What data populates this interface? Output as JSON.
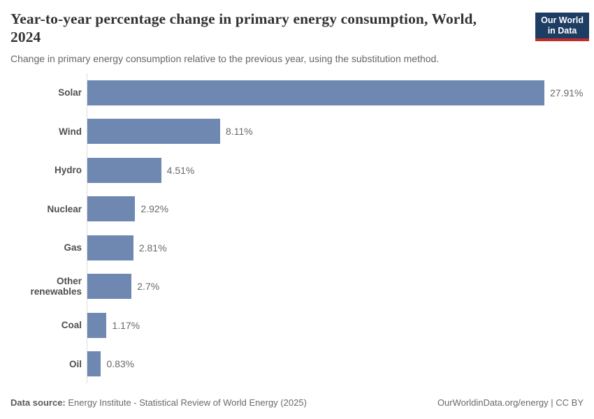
{
  "header": {
    "title": "Year-to-year percentage change in primary energy consumption, World, 2024",
    "subtitle": "Change in primary energy consumption relative to the previous year, using the substitution method.",
    "logo": {
      "line1": "Our World",
      "line2": "in Data",
      "background_color": "#1d3d63",
      "accent_color": "#c22d2c"
    }
  },
  "chart_data": {
    "type": "bar",
    "orientation": "horizontal",
    "title": "Year-to-year percentage change in primary energy consumption, World, 2024",
    "xlabel": "",
    "ylabel": "",
    "categories": [
      "Solar",
      "Wind",
      "Hydro",
      "Nuclear",
      "Gas",
      "Other renewables",
      "Coal",
      "Oil"
    ],
    "values": [
      27.91,
      8.11,
      4.51,
      2.92,
      2.81,
      2.7,
      1.17,
      0.83
    ],
    "value_labels": [
      "27.91%",
      "8.11%",
      "4.51%",
      "2.92%",
      "2.81%",
      "2.7%",
      "1.17%",
      "0.83%"
    ],
    "unit": "%",
    "xlim": [
      0,
      28
    ],
    "grid": false,
    "legend": "none",
    "bar_color": "#6f88b2",
    "axis_line_color": "#dcdcdc"
  },
  "footer": {
    "datasource_label": "Data source:",
    "datasource_text": "Energy Institute - Statistical Review of World Energy (2025)",
    "right_text": "OurWorldinData.org/energy | CC BY"
  }
}
